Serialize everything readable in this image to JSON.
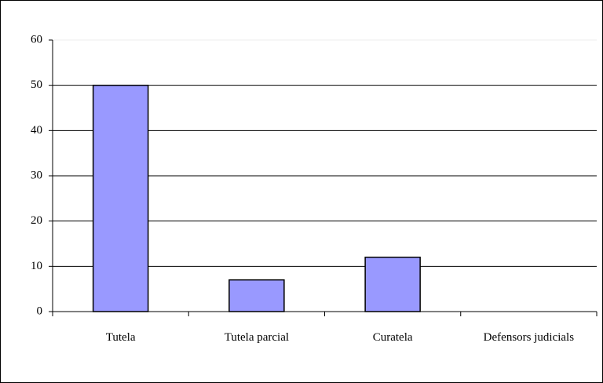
{
  "chart_data": {
    "type": "bar",
    "categories": [
      "Tutela",
      "Tutela parcial",
      "Curatela",
      "Defensors judicials"
    ],
    "values": [
      50,
      7,
      12,
      0
    ],
    "color": "#9999ff",
    "ylim": [
      0,
      60
    ],
    "yticks": [
      0,
      10,
      20,
      30,
      40,
      50,
      60
    ],
    "grid": true
  }
}
